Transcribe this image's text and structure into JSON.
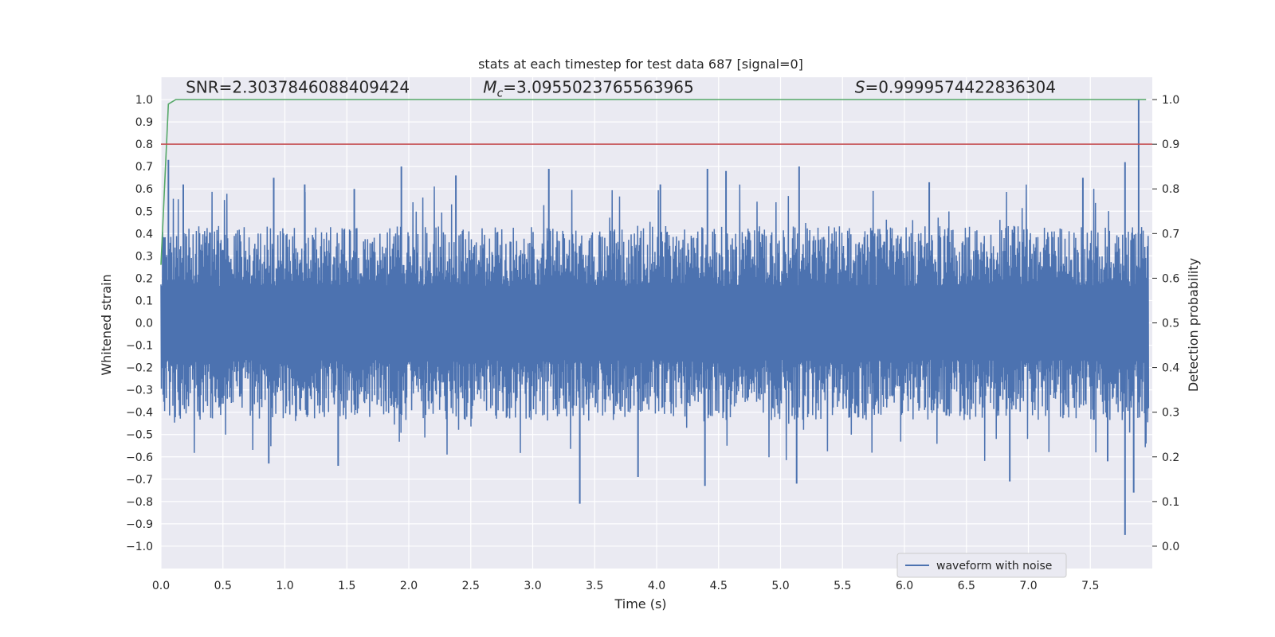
{
  "chart_data": {
    "type": "line",
    "title": "stats at each timestep for test data 687 [signal=0]",
    "xlabel": "Time (s)",
    "ylabel": "Whitened strain",
    "y2label": "Detection probability",
    "xlim": [
      0.0,
      8.0
    ],
    "ylim": [
      -1.1,
      1.1
    ],
    "y2lim": [
      -0.05,
      1.05
    ],
    "xticks": [
      0.0,
      0.5,
      1.0,
      1.5,
      2.0,
      2.5,
      3.0,
      3.5,
      4.0,
      4.5,
      5.0,
      5.5,
      6.0,
      6.5,
      7.0,
      7.5
    ],
    "xtick_labels": [
      "0.0",
      "0.5",
      "1.0",
      "1.5",
      "2.0",
      "2.5",
      "3.0",
      "3.5",
      "4.0",
      "4.5",
      "5.0",
      "5.5",
      "6.0",
      "6.5",
      "7.0",
      "7.5"
    ],
    "yticks": [
      -1.0,
      -0.9,
      -0.8,
      -0.7,
      -0.6,
      -0.5,
      -0.4,
      -0.3,
      -0.2,
      -0.1,
      0.0,
      0.1,
      0.2,
      0.3,
      0.4,
      0.5,
      0.6,
      0.7,
      0.8,
      0.9,
      1.0
    ],
    "ytick_labels": [
      "−1.0",
      "−0.9",
      "−0.8",
      "−0.7",
      "−0.6",
      "−0.5",
      "−0.4",
      "−0.3",
      "−0.2",
      "−0.1",
      "0.0",
      "0.1",
      "0.2",
      "0.3",
      "0.4",
      "0.5",
      "0.6",
      "0.7",
      "0.8",
      "0.9",
      "1.0"
    ],
    "y2ticks": [
      0.0,
      0.1,
      0.2,
      0.3,
      0.4,
      0.5,
      0.6,
      0.7,
      0.8,
      0.9,
      1.0
    ],
    "y2tick_labels": [
      "0.0",
      "0.1",
      "0.2",
      "0.3",
      "0.4",
      "0.5",
      "0.6",
      "0.7",
      "0.8",
      "0.9",
      "1.0"
    ],
    "grid": true,
    "legend_position": "lower-right",
    "annotations": [
      {
        "prefix": "SNR=",
        "value": "2.3037846088409424",
        "x": 0.2,
        "y": 1.03
      },
      {
        "symbol": "M",
        "subscript": "c",
        "prefix": "=",
        "value": "3.0955023765563965",
        "x": 2.6,
        "y": 1.03
      },
      {
        "symbol": "S",
        "prefix": "=",
        "value": "0.9999574422836304",
        "x": 5.6,
        "y": 1.03
      }
    ],
    "series": [
      {
        "name": "waveform with noise",
        "axis": "left",
        "color": "#4c72b0",
        "kind": "dense-noise",
        "x_start": 0.0,
        "x_end": 7.97,
        "envelope_typical": 0.3,
        "spikes": [
          {
            "x": 0.06,
            "y": 0.73
          },
          {
            "x": 0.18,
            "y": 0.62
          },
          {
            "x": 0.91,
            "y": 0.65
          },
          {
            "x": 1.16,
            "y": 0.62
          },
          {
            "x": 1.56,
            "y": 0.6
          },
          {
            "x": 1.94,
            "y": 0.7
          },
          {
            "x": 2.38,
            "y": 0.66
          },
          {
            "x": 3.13,
            "y": 0.69
          },
          {
            "x": 4.03,
            "y": 0.62
          },
          {
            "x": 4.41,
            "y": 0.69
          },
          {
            "x": 4.56,
            "y": 0.68
          },
          {
            "x": 5.15,
            "y": 0.7
          },
          {
            "x": 6.2,
            "y": 0.63
          },
          {
            "x": 7.44,
            "y": 0.65
          },
          {
            "x": 7.78,
            "y": 0.72
          },
          {
            "x": 7.89,
            "y": 1.0
          },
          {
            "x": 0.87,
            "y": -0.63
          },
          {
            "x": 1.43,
            "y": -0.64
          },
          {
            "x": 3.38,
            "y": -0.81
          },
          {
            "x": 3.85,
            "y": -0.69
          },
          {
            "x": 4.39,
            "y": -0.73
          },
          {
            "x": 5.13,
            "y": -0.72
          },
          {
            "x": 6.85,
            "y": -0.71
          },
          {
            "x": 7.64,
            "y": -0.62
          },
          {
            "x": 7.78,
            "y": -0.95
          },
          {
            "x": 7.85,
            "y": -0.76
          }
        ]
      },
      {
        "name": "",
        "axis": "right",
        "color": "#55a868",
        "x": [
          0.0,
          0.06,
          0.12,
          0.2,
          7.95
        ],
        "values": [
          0.63,
          0.99,
          1.0,
          1.0,
          1.0
        ]
      },
      {
        "name": "",
        "axis": "right",
        "color": "#c44e52",
        "x": [
          0.0,
          8.0
        ],
        "values": [
          0.9,
          0.9
        ]
      }
    ]
  }
}
